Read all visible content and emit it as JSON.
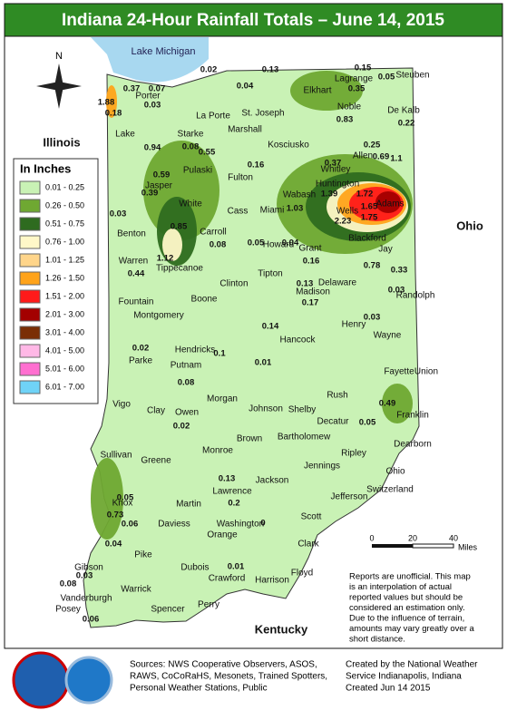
{
  "header": {
    "title": "Indiana 24-Hour Rainfall Totals – June 14, 2015"
  },
  "legend": {
    "title": "In Inches",
    "items": [
      {
        "label": "0.01 - 0.25",
        "color": "#c9f2b5"
      },
      {
        "label": "0.26 - 0.50",
        "color": "#6fa832"
      },
      {
        "label": "0.51 - 0.75",
        "color": "#2e6b1f"
      },
      {
        "label": "0.76 - 1.00",
        "color": "#fff8c8"
      },
      {
        "label": "1.01 - 1.25",
        "color": "#ffd58a"
      },
      {
        "label": "1.26 - 1.50",
        "color": "#ffa31a"
      },
      {
        "label": "1.51 - 2.00",
        "color": "#ff1a1a"
      },
      {
        "label": "2.01 - 3.00",
        "color": "#a30000"
      },
      {
        "label": "3.01 - 4.00",
        "color": "#7a2e05"
      },
      {
        "label": "4.01 - 5.00",
        "color": "#ffb8e6"
      },
      {
        "label": "5.01 - 6.00",
        "color": "#ff6fd0"
      },
      {
        "label": "6.01 - 7.00",
        "color": "#6fd3f7"
      }
    ]
  },
  "map": {
    "places": [
      "Lake Michigan",
      "Illinois",
      "Ohio",
      "Kentucky"
    ],
    "counties": [
      "Lake",
      "Porter",
      "La Porte",
      "St. Joseph",
      "Elkhart",
      "Lagrange",
      "Steuben",
      "Noble",
      "De Kalb",
      "Starke",
      "Marshall",
      "Kosciusko",
      "Pulaski",
      "Fulton",
      "Whitley",
      "Allen",
      "Jasper",
      "White",
      "Cass",
      "Miami",
      "Wabash",
      "Huntington",
      "Wells",
      "Adams",
      "Benton",
      "Carroll",
      "Howard",
      "Grant",
      "Blackford",
      "Jay",
      "Warren",
      "Tippecanoe",
      "Clinton",
      "Tipton",
      "Delaware",
      "Madison",
      "Randolph",
      "Fountain",
      "Montgomery",
      "Boone",
      "Henry",
      "Wayne",
      "Parke",
      "Hendricks",
      "Hancock",
      "Putnam",
      "Vigo",
      "Clay",
      "Owen",
      "Morgan",
      "Johnson",
      "Shelby",
      "Rush",
      "Fayette",
      "Union",
      "Franklin",
      "Decatur",
      "Sullivan",
      "Greene",
      "Monroe",
      "Brown",
      "Bartholomew",
      "Ripley",
      "Dearborn",
      "Ohio",
      "Jennings",
      "Switzerland",
      "Knox",
      "Lawrence",
      "Jackson",
      "Jefferson",
      "Martin",
      "Daviess",
      "Washington",
      "Orange",
      "Scott",
      "Clark",
      "Pike",
      "Dubois",
      "Floyd",
      "Gibson",
      "Warrick",
      "Crawford",
      "Harrison",
      "Vanderburgh",
      "Posey",
      "Spencer",
      "Perry"
    ],
    "values": [
      1.88,
      0.37,
      0.07,
      0.03,
      0.02,
      0.13,
      0.15,
      0.05,
      0.18,
      0.04,
      0.35,
      0.83,
      0.22,
      0.94,
      0.59,
      0.39,
      0.08,
      0.55,
      0.16,
      0.37,
      0.69,
      0.25,
      1.1,
      1.39,
      1.72,
      1.65,
      1.75,
      2.23,
      1.03,
      0.85,
      1.12,
      0.44,
      0.03,
      0.08,
      0.05,
      0.04,
      0.16,
      0.78,
      0.33,
      0.13,
      0.17,
      0.03,
      0.02,
      0.08,
      0.1,
      0.14,
      0.03,
      0.49,
      0.05,
      0.02,
      0.01,
      0.13,
      0.2,
      0.73,
      0.05,
      0.06,
      0.04,
      0.03,
      0.08,
      0.06,
      0,
      0.01
    ],
    "scale": [
      "0",
      "20",
      "40",
      "Miles"
    ]
  },
  "note": [
    "Reports are unofficial. This map",
    "is an interpolation of actual",
    "reported values but should be",
    "considered an estimation only.",
    "Due to the influence of terrain,",
    "amounts may vary greatly over a",
    "short distance."
  ],
  "footer": {
    "sources": [
      "Sources: NWS Cooperative Observers, ASOS,",
      "RAWS, CoCoRaHS, Mesonets, Trained Spotters,",
      "Personal Weather Stations, Public"
    ],
    "created": [
      "Created by the National Weather",
      "Service Indianapolis, Indiana",
      "Created Jun 14 2015"
    ],
    "logos": [
      "NOAA"
    ]
  }
}
